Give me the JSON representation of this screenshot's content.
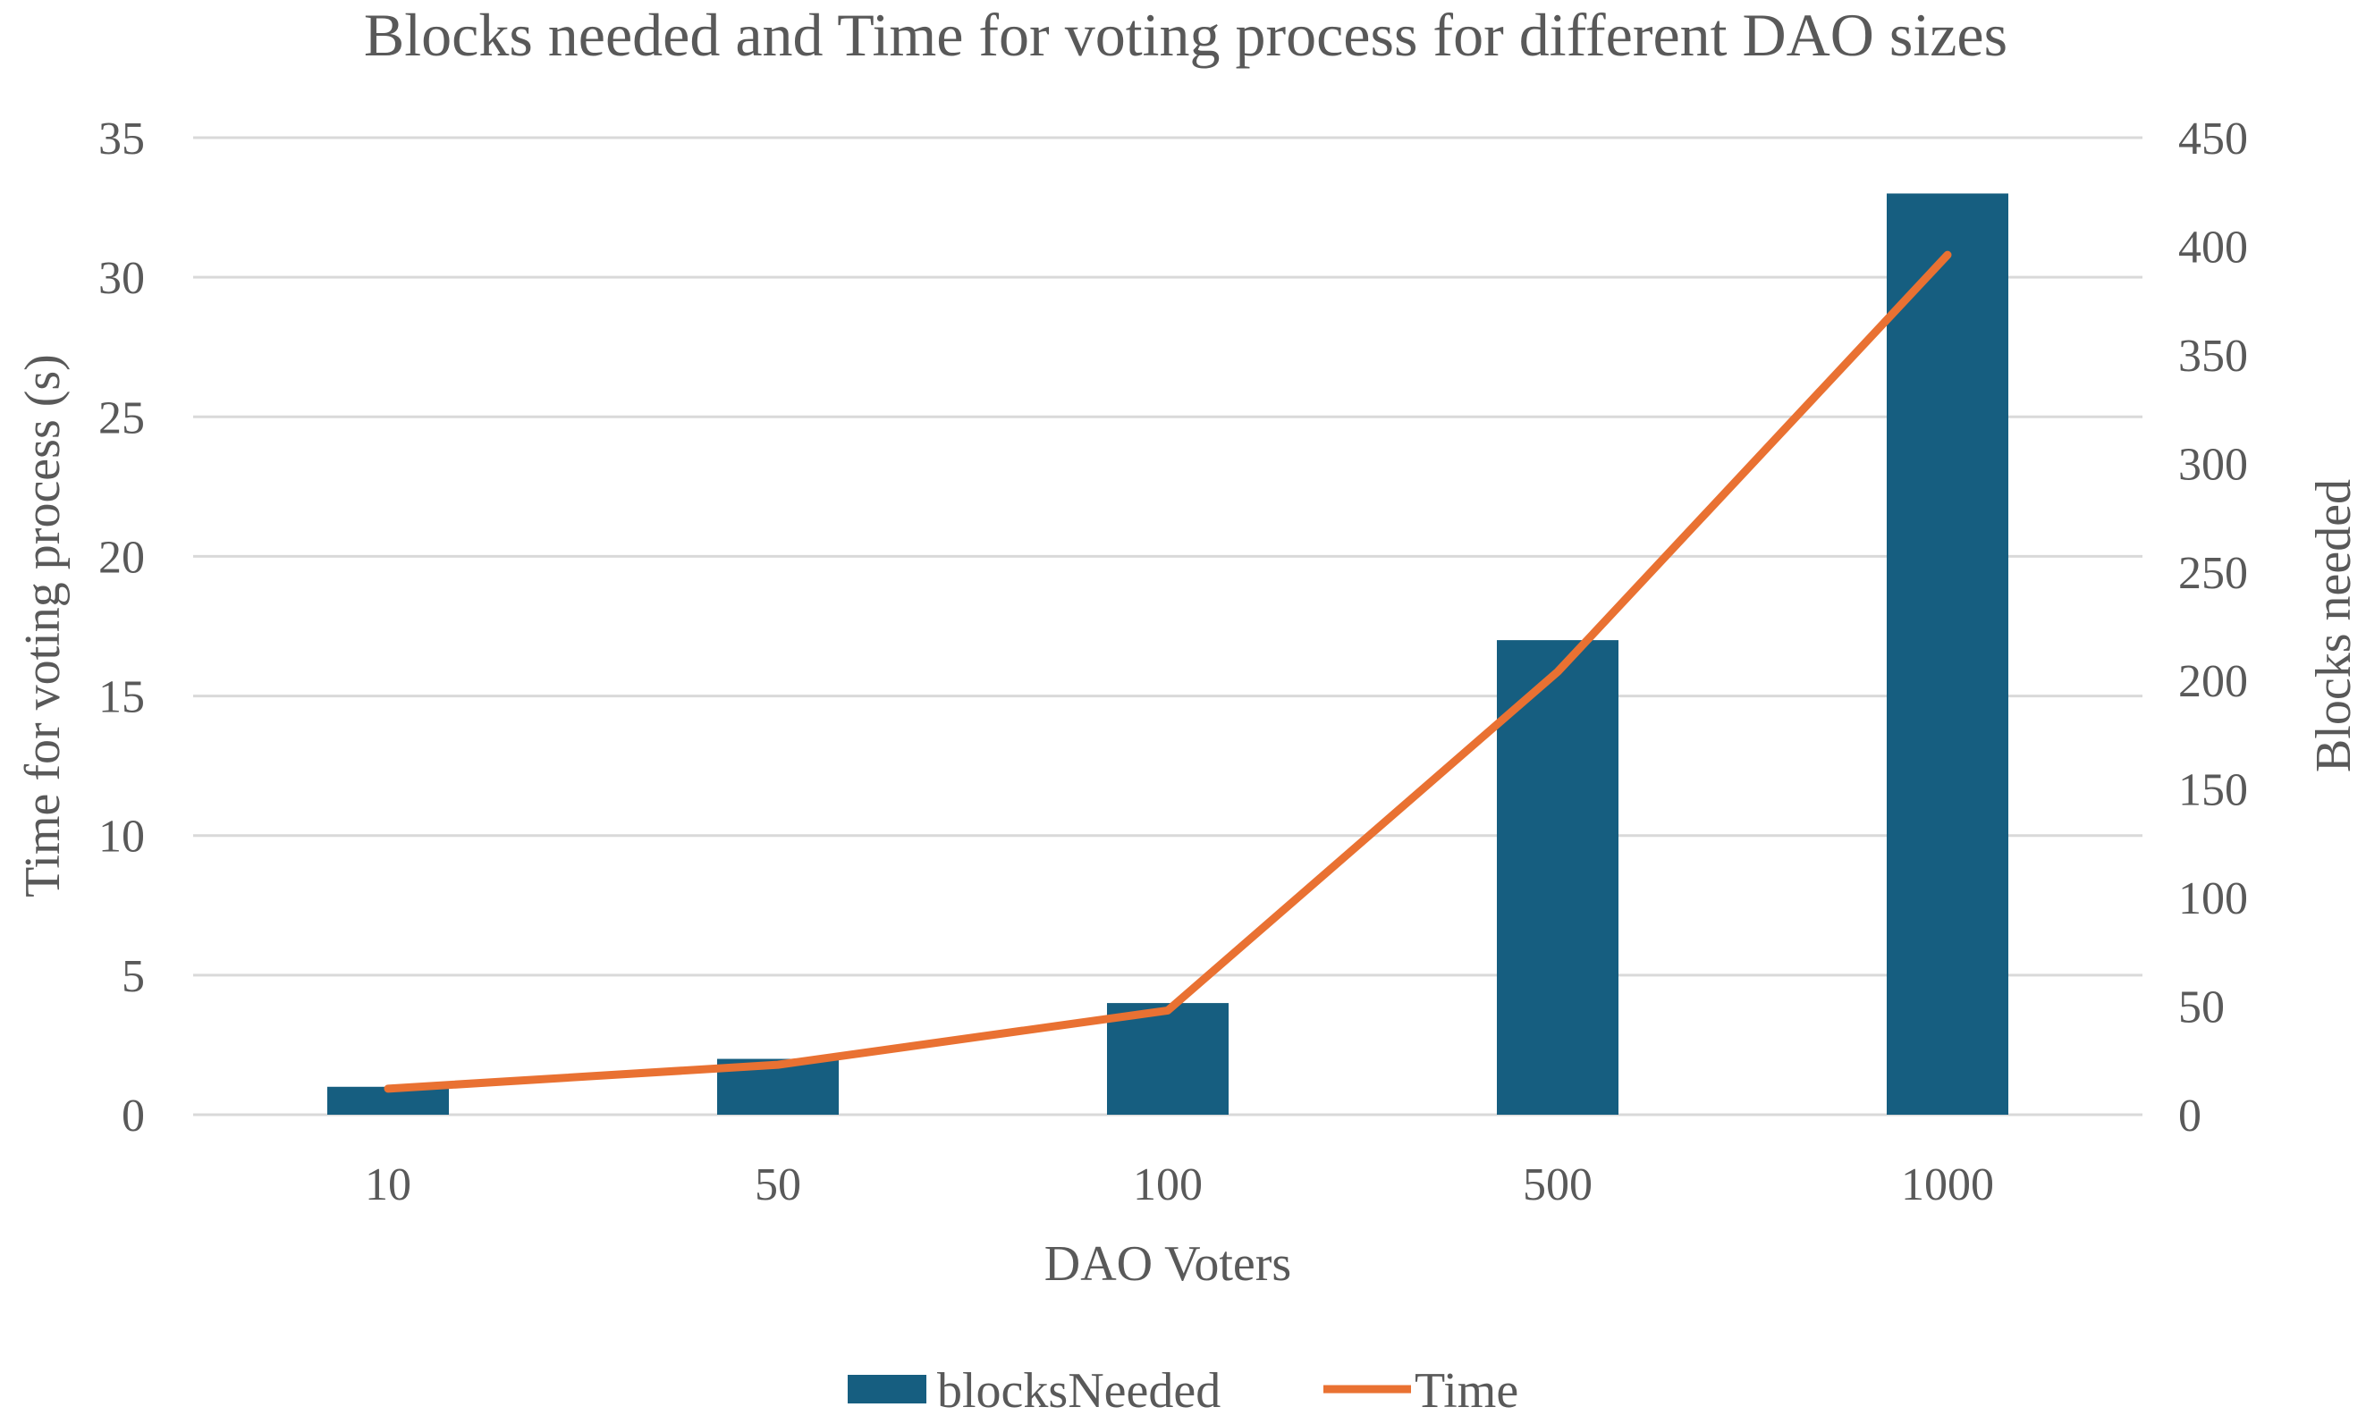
{
  "chart_data": {
    "type": "bar+line",
    "title": "Blocks needed and Time for voting process for different DAO sizes",
    "xlabel": "DAO Voters",
    "ylabel_left": "Time for voting process (s)",
    "ylabel_right": "Blocks needed",
    "categories": [
      "10",
      "50",
      "100",
      "500",
      "1000"
    ],
    "ylim_left": [
      0,
      35
    ],
    "yticks_left": [
      0,
      5,
      10,
      15,
      20,
      25,
      30,
      35
    ],
    "ylim_right": [
      0,
      450
    ],
    "yticks_right": [
      0,
      50,
      100,
      150,
      200,
      250,
      300,
      350,
      400,
      450
    ],
    "grid": true,
    "legend_position": "bottom",
    "series": [
      {
        "name": "blocksNeeded",
        "type": "bar",
        "axis": "left",
        "color": "#165E80",
        "values": [
          1,
          2,
          4,
          17,
          33
        ]
      },
      {
        "name": "Time",
        "type": "line",
        "axis": "right",
        "color": "#E97132",
        "values": [
          12,
          23,
          48,
          204,
          396
        ]
      }
    ]
  }
}
